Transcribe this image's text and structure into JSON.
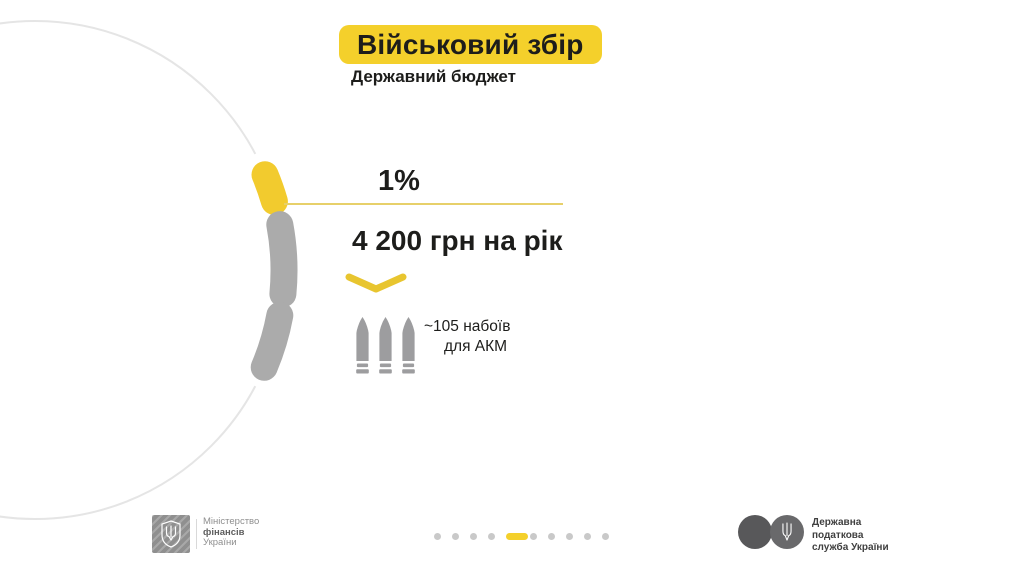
{
  "slide": {
    "title": "Військовий збір",
    "subtitle": "Державний бюджет"
  },
  "figure": {
    "type": "segmented-ring",
    "rate": "1%",
    "amount": "4 200 грн на рік",
    "equivalent_line1": "~105 набоїв",
    "equivalent_line2": "для АКМ",
    "segments_total": 3,
    "segments_highlighted": 1,
    "bullet_icon_count": 3
  },
  "footer": {
    "ministry": {
      "line1": "Міністерство",
      "line2": "фінансів",
      "line3": "України"
    },
    "tax_service": {
      "line1": "Державна",
      "line2": "податкова",
      "line3": "служба України"
    },
    "pagination": {
      "total": 10,
      "active_index": 5
    }
  },
  "colors": {
    "accent-yellow": "#F4D02B",
    "segment-yellow": "#F2CB2E",
    "segment-gray": "#ABABAB",
    "circle-outline": "#E5E5E5",
    "line-yellow": "#E7D06A",
    "chevron-yellow": "#E8C52F",
    "bullet-gray": "#9D9D9F",
    "text-dark": "#1D1D1B",
    "footer-gray": "#8F8F8F",
    "dot-gray": "#C9C9C9",
    "tax-circle-dark": "#58585A",
    "tax-circle-mid": "#69696B"
  }
}
